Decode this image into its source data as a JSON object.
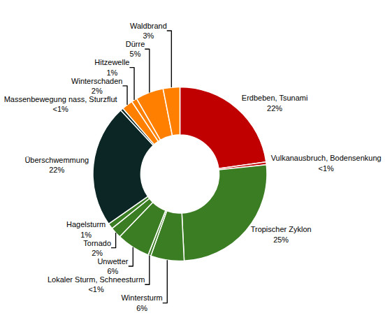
{
  "chart_data": {
    "type": "donut",
    "categories": [
      "Erdbeben, Tsunami",
      "Vulkanausbruch, Bodensenkung",
      "Tropischer Zyklon",
      "Wintersturm",
      "Lokaler Sturm, Schneesturm",
      "Unwetter",
      "Tornado",
      "Hagelsturm",
      "Überschwemmung",
      "Massenbewegung nass, Sturzflut",
      "Winterschaden",
      "Hitzewelle",
      "Dürre",
      "Waldbrand"
    ],
    "values": [
      22,
      0.5,
      25,
      6,
      0.5,
      6,
      2,
      1,
      22,
      0.5,
      2,
      1,
      5,
      3
    ],
    "value_labels": [
      "22%",
      "<1%",
      "25%",
      "6%",
      "<1%",
      "6%",
      "2%",
      "1%",
      "22%",
      "<1%",
      "2%",
      "1%",
      "5%",
      "3%"
    ],
    "colors": [
      "#c00000",
      "#c00000",
      "#3b7d23",
      "#3b7d23",
      "#3b7d23",
      "#3b7d23",
      "#3b7d23",
      "#3b7d23",
      "#0c2626",
      "#0c2626",
      "#ff8000",
      "#ff8000",
      "#ff8000",
      "#ff8000"
    ],
    "data_labels": true
  }
}
